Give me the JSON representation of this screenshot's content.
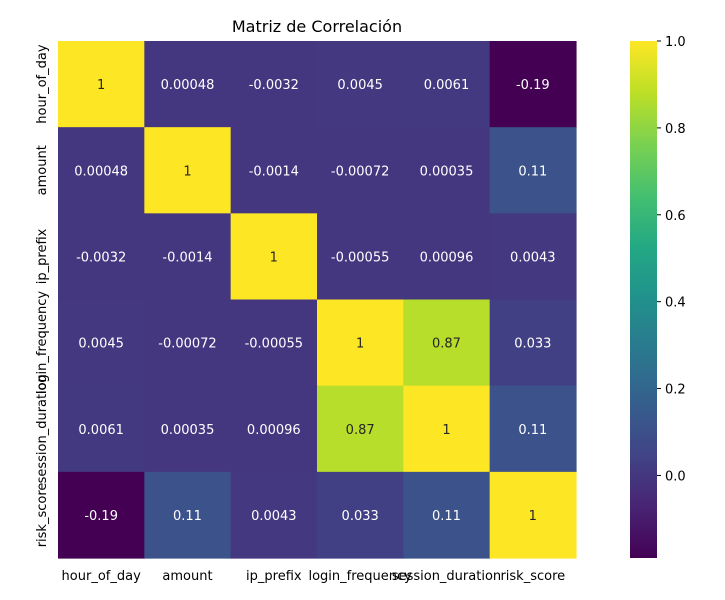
{
  "chart_data": {
    "type": "heatmap",
    "title": "Matriz de Correlación",
    "xlabel": "",
    "ylabel": "",
    "x_labels": [
      "hour_of_day",
      "amount",
      "ip_prefix",
      "login_frequency",
      "session_duration",
      "risk_score"
    ],
    "y_labels": [
      "hour_of_day",
      "amount",
      "ip_prefix",
      "login_frequency",
      "session_duration",
      "risk_score"
    ],
    "values": [
      [
        1,
        0.00048,
        -0.0032,
        0.0045,
        0.0061,
        -0.19
      ],
      [
        0.00048,
        1,
        -0.0014,
        -0.00072,
        0.00035,
        0.11
      ],
      [
        -0.0032,
        -0.0014,
        1,
        -0.00055,
        0.00096,
        0.0043
      ],
      [
        0.0045,
        -0.00072,
        -0.00055,
        1,
        0.87,
        0.033
      ],
      [
        0.0061,
        0.00035,
        0.00096,
        0.87,
        1,
        0.11
      ],
      [
        -0.19,
        0.11,
        0.0043,
        0.033,
        0.11,
        1
      ]
    ],
    "colormap": "viridis",
    "colorbar": {
      "vmin": -0.19,
      "vmax": 1.0,
      "ticks": [
        0.0,
        0.2,
        0.4,
        0.6,
        0.8,
        1.0
      ],
      "tick_labels": [
        "0.0",
        "0.2",
        "0.4",
        "0.6",
        "0.8",
        "1.0"
      ]
    },
    "annotate": true
  }
}
